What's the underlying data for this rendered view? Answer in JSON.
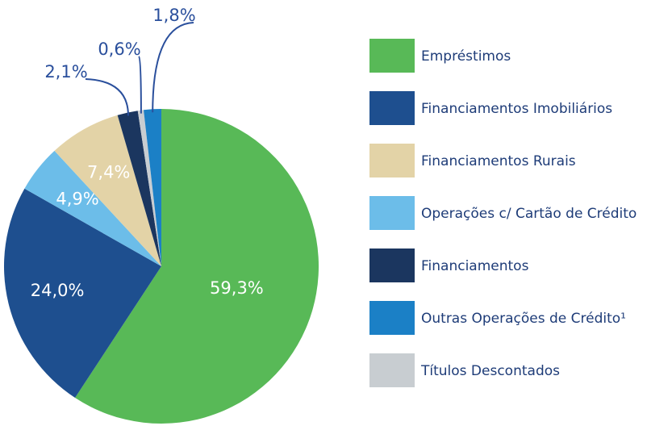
{
  "chart_data": {
    "type": "pie",
    "categories": [
      "Empréstimos",
      "Financiamentos Imobiliários",
      "Operações c/ Cartão de Crédito",
      "Financiamentos Rurais",
      "Financiamentos",
      "Títulos Descontados",
      "Outras Operações de Crédito¹"
    ],
    "values": [
      59.3,
      24.0,
      4.9,
      7.4,
      2.1,
      0.6,
      1.8
    ],
    "value_labels": [
      "59,3%",
      "24,0%",
      "4,9%",
      "7,4%",
      "2,1%",
      "0,6%",
      "1,8%"
    ],
    "colors": [
      "#58b957",
      "#1e4f8f",
      "#6cbde9",
      "#e3d3a7",
      "#1b365f",
      "#c8cdd1",
      "#1b80c6"
    ]
  }
}
